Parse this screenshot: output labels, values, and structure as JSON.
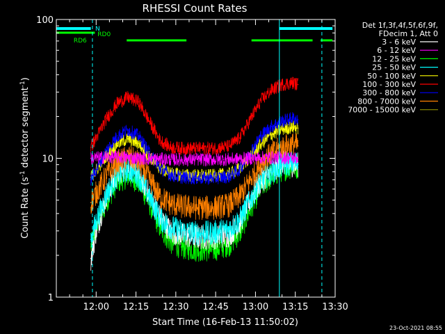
{
  "chart_data": {
    "type": "line",
    "title": "RHESSI Count Rates",
    "xlabel": "Start Time (16-Feb-13 11:50:02)",
    "ylabel_main": "Count Rate (s",
    "ylabel_sup1": "-1",
    "ylabel_mid": " detector segment",
    "ylabel_sup2": "-1",
    "ylabel_end": ")",
    "x_axis": {
      "unit": "minutes since 11:50:02",
      "range": [
        -5,
        100
      ],
      "ticks": [
        {
          "label": "12:00",
          "value": 10
        },
        {
          "label": "12:15",
          "value": 25
        },
        {
          "label": "12:30",
          "value": 40
        },
        {
          "label": "12:45",
          "value": 55
        },
        {
          "label": "13:00",
          "value": 70
        },
        {
          "label": "13:15",
          "value": 85
        },
        {
          "label": "13:30",
          "value": 100
        }
      ]
    },
    "y_axis": {
      "scale": "log",
      "range": [
        1,
        100
      ],
      "ticks": [
        {
          "label": "1",
          "value": 1
        },
        {
          "label": "10",
          "value": 10
        },
        {
          "label": "100",
          "value": 100
        }
      ]
    },
    "legend": {
      "placement": "right",
      "header": [
        "Det 1f,3f,4f,5f,6f,9f,",
        "FDecim 1, Att 0"
      ]
    },
    "series": [
      {
        "name": "3 - 6 keV",
        "color": "#ffffff",
        "x": [
          8,
          10,
          14,
          18,
          22,
          26,
          30,
          34,
          38,
          42,
          48,
          54,
          60,
          64,
          68,
          72,
          76,
          80,
          84,
          86
        ],
        "y": [
          1.9,
          3.0,
          5.5,
          7.8,
          8.6,
          7.8,
          5.5,
          3.8,
          3.0,
          2.8,
          2.7,
          2.7,
          2.8,
          3.4,
          5.0,
          6.8,
          8.0,
          9.3,
          9.0,
          9.0
        ]
      },
      {
        "name": "6 - 12 keV",
        "color": "#ff00ff",
        "x": [
          8,
          14,
          20,
          26,
          32,
          38,
          48,
          58,
          64,
          68,
          72,
          78,
          82,
          86
        ],
        "y": [
          10.0,
          10.2,
          10.2,
          10.0,
          9.9,
          9.8,
          9.8,
          9.8,
          9.9,
          10.0,
          10.1,
          10.1,
          10.1,
          10.0
        ]
      },
      {
        "name": "12 - 25 keV",
        "color": "#00ff00",
        "x": [
          8,
          10,
          14,
          18,
          22,
          26,
          30,
          34,
          38,
          42,
          48,
          54,
          60,
          64,
          68,
          72,
          76,
          80,
          84,
          86
        ],
        "y": [
          2.3,
          3.1,
          5.0,
          6.8,
          7.5,
          6.8,
          4.8,
          3.2,
          2.5,
          2.3,
          2.2,
          2.2,
          2.4,
          2.9,
          4.3,
          6.2,
          7.4,
          8.3,
          8.8,
          8.6
        ]
      },
      {
        "name": "25 - 50 keV",
        "color": "#00ffff",
        "x": [
          8,
          10,
          14,
          18,
          22,
          26,
          30,
          34,
          38,
          42,
          48,
          54,
          60,
          64,
          68,
          72,
          76,
          80,
          84,
          86
        ],
        "y": [
          2.6,
          3.5,
          5.6,
          7.5,
          8.3,
          7.5,
          5.3,
          3.7,
          3.2,
          3.0,
          2.9,
          2.9,
          3.1,
          3.6,
          5.0,
          6.9,
          8.0,
          8.9,
          9.3,
          9.2
        ]
      },
      {
        "name": "50 - 100 keV",
        "color": "#ffff00",
        "x": [
          8,
          10,
          14,
          18,
          22,
          26,
          30,
          34,
          38,
          42,
          48,
          54,
          60,
          64,
          68,
          72,
          76,
          80,
          84,
          86
        ],
        "y": [
          7.3,
          8.2,
          10.5,
          12.8,
          13.8,
          12.8,
          10.3,
          8.5,
          7.8,
          7.6,
          7.5,
          7.5,
          7.7,
          8.4,
          10.3,
          12.6,
          14.8,
          16.2,
          16.8,
          16.5
        ]
      },
      {
        "name": "100 - 300 keV",
        "color": "#ff0000",
        "x": [
          8,
          10,
          14,
          18,
          22,
          26,
          30,
          34,
          38,
          42,
          48,
          54,
          60,
          64,
          68,
          72,
          76,
          80,
          84,
          86
        ],
        "y": [
          12.0,
          14.0,
          19.5,
          25.0,
          27.5,
          25.5,
          18.5,
          13.5,
          12.0,
          11.8,
          11.8,
          11.8,
          12.2,
          14.0,
          19.0,
          26.0,
          31.0,
          34.0,
          35.0,
          34.0
        ]
      },
      {
        "name": "300 - 800 keV",
        "color": "#0000ff",
        "x": [
          8,
          10,
          14,
          18,
          22,
          26,
          30,
          34,
          38,
          42,
          48,
          54,
          60,
          64,
          68,
          72,
          76,
          80,
          84,
          86
        ],
        "y": [
          7.0,
          8.3,
          11.5,
          14.5,
          16.0,
          14.5,
          11.0,
          8.5,
          7.6,
          7.3,
          7.2,
          7.2,
          7.4,
          8.3,
          11.0,
          14.5,
          17.0,
          18.5,
          19.5,
          19.0
        ]
      },
      {
        "name": "800 - 7000 keV",
        "color": "#ff8000",
        "x": [
          8,
          10,
          14,
          18,
          22,
          26,
          30,
          34,
          38,
          42,
          48,
          54,
          60,
          64,
          68,
          72,
          76,
          80,
          84,
          86
        ],
        "y": [
          4.8,
          5.6,
          7.6,
          9.4,
          10.2,
          9.4,
          7.1,
          5.3,
          4.7,
          4.5,
          4.4,
          4.4,
          4.6,
          5.3,
          7.0,
          9.2,
          10.8,
          12.0,
          12.6,
          12.3
        ]
      },
      {
        "name": "7000 - 15000 keV",
        "color": "#808000",
        "x": [],
        "y": []
      }
    ],
    "bars": [
      {
        "color": "#00ffff",
        "segments": [
          [
            -5,
            8.0
          ],
          [
            79,
            99
          ]
        ],
        "label": "N"
      },
      {
        "color": "#00ff00",
        "segments": [
          [
            -5,
            9.5
          ],
          [
            21.5,
            44
          ],
          [
            68.5,
            91.5
          ],
          [
            94.5,
            99
          ]
        ],
        "label": "RD0",
        "sublabel": "RD6"
      }
    ],
    "vertical_markers": [
      {
        "x": 8.6,
        "color": "#00ffff",
        "style": "dashed"
      },
      {
        "x": 79.0,
        "color": "#00ffff",
        "style": "solid"
      },
      {
        "x": 95.0,
        "color": "#00ffff",
        "style": "dashed"
      }
    ]
  },
  "footer": {
    "timestamp": "23-Oct-2021 08:55"
  }
}
